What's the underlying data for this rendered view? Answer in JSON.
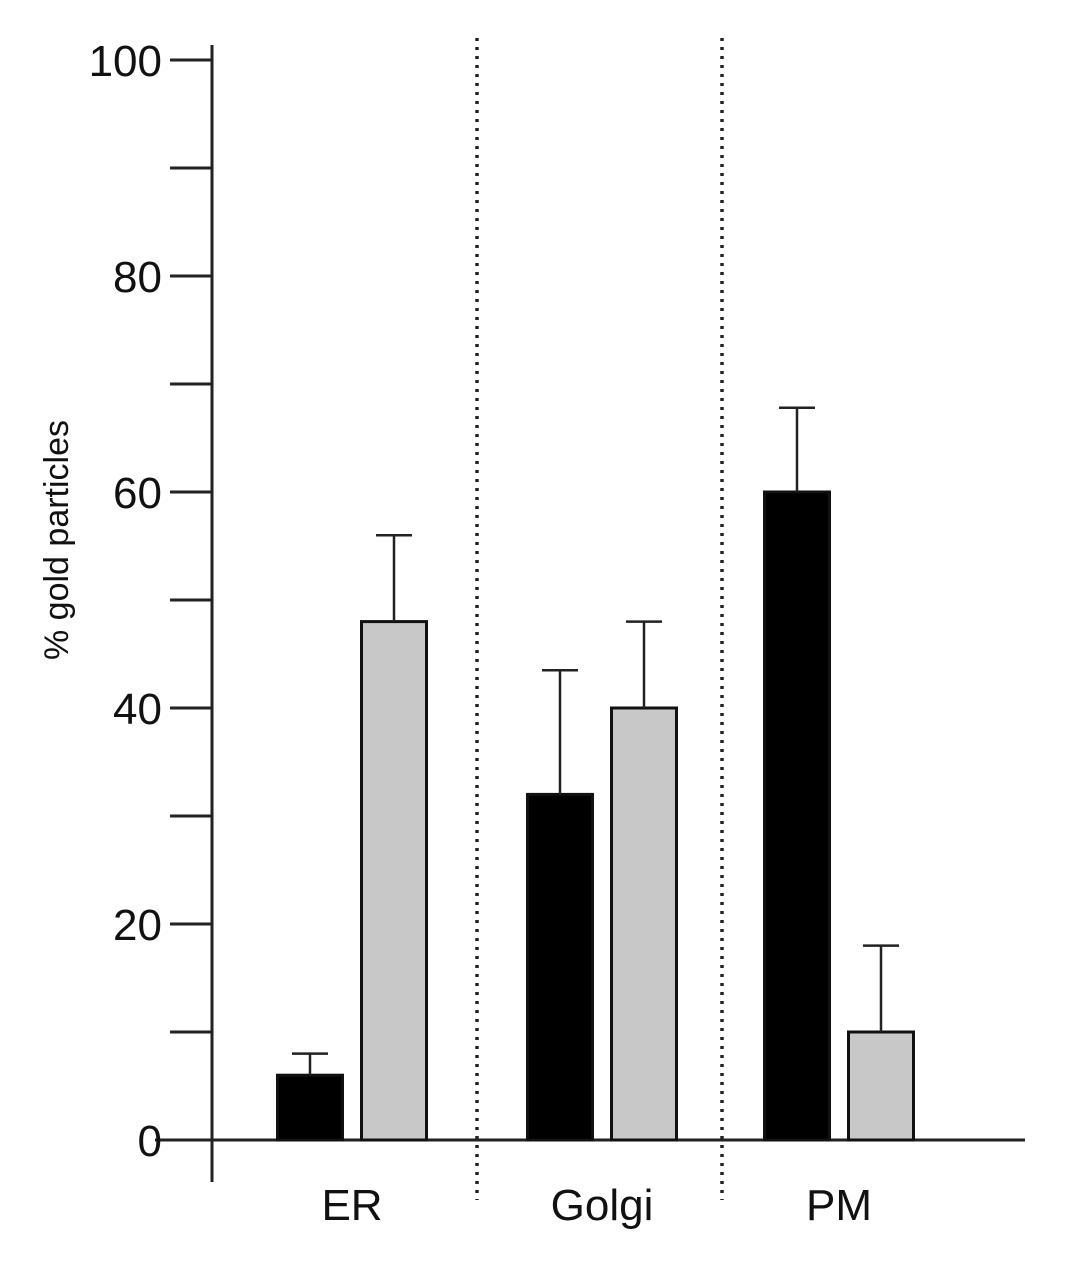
{
  "chart_data": {
    "type": "bar",
    "categories": [
      "ER",
      "Golgi",
      "PM"
    ],
    "series": [
      {
        "values": [
          6,
          32,
          60
        ],
        "errors": [
          2,
          11.5,
          7.8
        ],
        "color": "#000000"
      },
      {
        "values": [
          48,
          40,
          10
        ],
        "errors": [
          8,
          8,
          8
        ],
        "color": "#c8c8c8"
      }
    ],
    "ylabel": "% gold particles",
    "ylim": [
      0,
      100
    ],
    "yticks_labeled": [
      0,
      20,
      40,
      60,
      80,
      100
    ],
    "yticks_minor": [
      10,
      30,
      50,
      70,
      90
    ],
    "separators": "dotted vertical lines between categories",
    "grid": false,
    "legend": "none"
  }
}
